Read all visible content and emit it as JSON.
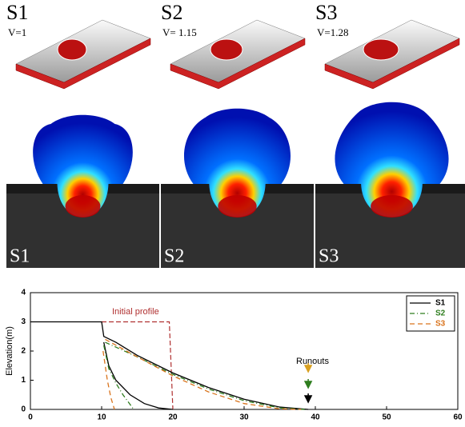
{
  "panels_top": [
    {
      "label": "S1",
      "velocity": "V=1"
    },
    {
      "label": "S2",
      "velocity": "V= 1.15"
    },
    {
      "label": "S3",
      "velocity": "V=1.28"
    }
  ],
  "panels_middle": [
    {
      "label": "S1"
    },
    {
      "label": "S2"
    },
    {
      "label": "S3"
    }
  ],
  "chart_data": {
    "type": "line",
    "ylabel": "Elevation(m)",
    "xlim": [
      0,
      60
    ],
    "ylim": [
      0,
      4
    ],
    "xticks": [
      0,
      10,
      20,
      30,
      40,
      50,
      60
    ],
    "yticks": [
      0,
      1,
      2,
      3,
      4
    ],
    "legend": "upper right",
    "annotations": [
      {
        "text": "Initial profile",
        "color": "#b03030"
      },
      {
        "text": "Runouts",
        "color": "#000000"
      }
    ],
    "initial_profile": {
      "color": "#b03030",
      "x": [
        10,
        19.5,
        20
      ],
      "values": [
        3,
        3,
        0
      ]
    },
    "series": [
      {
        "name": "S1",
        "color": "#000000",
        "dash": "none",
        "x": [
          0,
          10,
          10.3,
          12,
          15,
          20,
          25,
          30,
          35,
          39,
          39,
          10.3,
          11,
          12,
          14,
          16,
          18,
          20
        ],
        "values": [
          3,
          3,
          2.5,
          2.3,
          1.85,
          1.25,
          0.75,
          0.35,
          0.08,
          0,
          null,
          2.3,
          1.5,
          1.0,
          0.5,
          0.2,
          0.05,
          0
        ]
      },
      {
        "name": "S2",
        "color": "#2e7d1e",
        "dash": "6 3 1 3",
        "x": [
          10.5,
          15,
          20,
          25,
          30,
          35,
          38.5,
          38.5,
          10.3,
          11,
          12,
          13,
          14.5
        ],
        "values": [
          2.3,
          1.8,
          1.2,
          0.7,
          0.3,
          0.05,
          0,
          null,
          2.2,
          1.4,
          0.9,
          0.5,
          0
        ]
      },
      {
        "name": "S3",
        "color": "#d9731c",
        "dash": "6 4",
        "x": [
          10.5,
          15,
          20,
          25,
          30,
          35,
          38,
          38,
          10.2,
          10.8,
          11.3,
          11.8
        ],
        "values": [
          2.4,
          1.8,
          1.15,
          0.6,
          0.2,
          0.02,
          0,
          null,
          2,
          1,
          0.4,
          0
        ]
      }
    ]
  }
}
